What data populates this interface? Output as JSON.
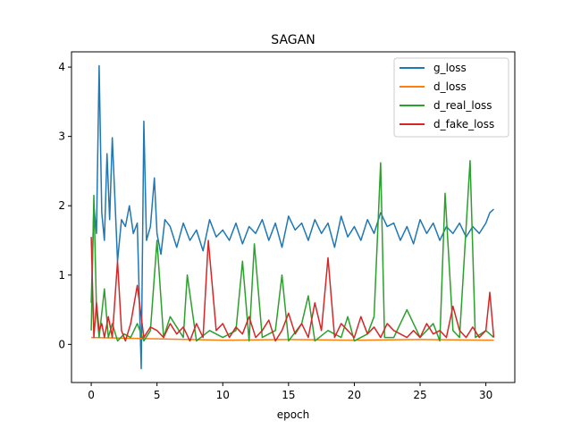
{
  "chart_data": {
    "type": "line",
    "title": "SAGAN",
    "xlabel": "epoch",
    "ylabel": "",
    "xlim": [
      -1.5,
      32.2
    ],
    "ylim": [
      -0.55,
      4.22
    ],
    "x_ticks": [
      0,
      5,
      10,
      15,
      20,
      25,
      30
    ],
    "y_ticks": [
      0,
      1,
      2,
      3,
      4
    ],
    "legend_position": "top-right",
    "grid": false,
    "series": [
      {
        "name": "g_loss",
        "color": "#1f77b4",
        "x": [
          0.0,
          0.2,
          0.4,
          0.6,
          0.8,
          1.0,
          1.2,
          1.4,
          1.6,
          1.8,
          2.0,
          2.3,
          2.6,
          2.9,
          3.2,
          3.5,
          3.8,
          4.0,
          4.2,
          4.5,
          4.8,
          5.0,
          5.3,
          5.6,
          6.0,
          6.5,
          7.0,
          7.5,
          8.0,
          8.5,
          9.0,
          9.5,
          10.0,
          10.5,
          11.0,
          11.5,
          12.0,
          12.5,
          13.0,
          13.5,
          14.0,
          14.5,
          15.0,
          15.5,
          16.0,
          16.5,
          17.0,
          17.5,
          18.0,
          18.5,
          19.0,
          19.5,
          20.0,
          20.5,
          21.0,
          21.5,
          22.0,
          22.5,
          23.0,
          23.5,
          24.0,
          24.5,
          25.0,
          25.5,
          26.0,
          26.5,
          27.0,
          27.5,
          28.0,
          28.5,
          29.0,
          29.5,
          30.0,
          30.3,
          30.6
        ],
        "y": [
          0.6,
          2.0,
          1.6,
          4.02,
          1.9,
          1.5,
          2.75,
          1.8,
          2.98,
          2.1,
          1.2,
          1.8,
          1.7,
          2.0,
          1.6,
          1.75,
          -0.35,
          3.22,
          1.5,
          1.7,
          2.4,
          1.6,
          1.3,
          1.8,
          1.7,
          1.4,
          1.75,
          1.5,
          1.65,
          1.35,
          1.8,
          1.55,
          1.65,
          1.5,
          1.75,
          1.45,
          1.7,
          1.6,
          1.8,
          1.5,
          1.75,
          1.4,
          1.85,
          1.65,
          1.75,
          1.5,
          1.8,
          1.6,
          1.75,
          1.4,
          1.85,
          1.55,
          1.7,
          1.5,
          1.8,
          1.6,
          1.9,
          1.7,
          1.75,
          1.5,
          1.7,
          1.45,
          1.8,
          1.6,
          1.75,
          1.5,
          1.7,
          1.6,
          1.75,
          1.55,
          1.7,
          1.6,
          1.75,
          1.9,
          1.95
        ]
      },
      {
        "name": "d_loss",
        "color": "#ff7f0e",
        "x": [
          0.0,
          5.0,
          10.0,
          15.0,
          20.0,
          25.0,
          30.6
        ],
        "y": [
          0.1,
          0.08,
          0.06,
          0.07,
          0.06,
          0.07,
          0.06
        ]
      },
      {
        "name": "d_real_loss",
        "color": "#2ca02c",
        "x": [
          0.0,
          0.2,
          0.4,
          0.6,
          1.0,
          1.3,
          1.6,
          2.0,
          2.5,
          3.0,
          3.5,
          4.0,
          4.5,
          5.0,
          5.5,
          6.0,
          7.0,
          7.3,
          8.0,
          9.0,
          10.0,
          11.0,
          11.5,
          12.0,
          12.4,
          13.0,
          14.0,
          14.5,
          15.0,
          16.0,
          16.5,
          17.0,
          18.0,
          19.0,
          19.5,
          20.0,
          21.0,
          21.5,
          22.0,
          22.3,
          23.0,
          24.0,
          25.0,
          26.0,
          26.5,
          26.9,
          27.5,
          28.0,
          28.8,
          29.2,
          30.0,
          30.6
        ],
        "y": [
          0.2,
          2.15,
          0.5,
          0.1,
          0.8,
          0.1,
          0.3,
          0.05,
          0.15,
          0.1,
          0.3,
          0.05,
          0.2,
          1.5,
          0.1,
          0.4,
          0.1,
          1.0,
          0.05,
          0.2,
          0.1,
          0.2,
          1.2,
          0.05,
          1.45,
          0.1,
          0.2,
          1.0,
          0.05,
          0.3,
          0.7,
          0.05,
          0.2,
          0.1,
          0.4,
          0.05,
          0.15,
          0.4,
          2.62,
          0.1,
          0.1,
          0.5,
          0.1,
          0.3,
          0.05,
          2.18,
          0.2,
          0.1,
          2.65,
          0.1,
          0.2,
          0.1
        ]
      },
      {
        "name": "d_fake_loss",
        "color": "#d62728",
        "x": [
          0.0,
          0.2,
          0.4,
          0.6,
          0.8,
          1.0,
          1.3,
          1.6,
          2.0,
          2.3,
          2.6,
          3.0,
          3.5,
          4.0,
          4.5,
          5.0,
          5.5,
          6.0,
          6.5,
          7.0,
          7.5,
          8.0,
          8.5,
          8.9,
          9.5,
          10.0,
          10.5,
          11.0,
          11.5,
          12.0,
          12.5,
          13.0,
          13.5,
          14.0,
          14.5,
          15.0,
          15.5,
          16.0,
          16.5,
          17.0,
          17.5,
          18.0,
          18.5,
          19.0,
          19.5,
          20.0,
          20.5,
          21.0,
          21.5,
          22.0,
          22.5,
          23.0,
          23.5,
          24.0,
          24.5,
          25.0,
          25.5,
          26.0,
          26.5,
          27.0,
          27.5,
          28.0,
          28.5,
          29.0,
          29.5,
          30.0,
          30.3,
          30.6
        ],
        "y": [
          1.55,
          0.1,
          0.6,
          0.2,
          0.3,
          0.1,
          0.4,
          0.1,
          1.2,
          0.2,
          0.05,
          0.3,
          0.85,
          0.1,
          0.25,
          0.2,
          0.1,
          0.3,
          0.15,
          0.25,
          0.05,
          0.3,
          0.1,
          1.5,
          0.2,
          0.3,
          0.1,
          0.25,
          0.15,
          0.4,
          0.1,
          0.2,
          0.35,
          0.05,
          0.2,
          0.45,
          0.15,
          0.3,
          0.1,
          0.6,
          0.2,
          1.25,
          0.1,
          0.3,
          0.2,
          0.1,
          0.4,
          0.15,
          0.25,
          0.1,
          0.3,
          0.2,
          0.15,
          0.1,
          0.2,
          0.1,
          0.3,
          0.15,
          0.2,
          0.1,
          0.55,
          0.2,
          0.1,
          0.25,
          0.1,
          0.2,
          0.75,
          0.1
        ]
      }
    ]
  }
}
